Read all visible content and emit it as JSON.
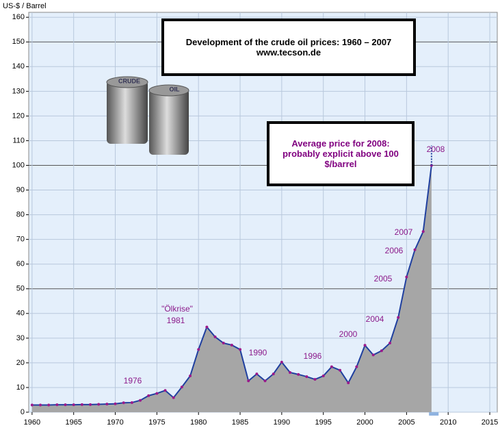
{
  "chart_data": {
    "type": "line",
    "title": "Development of the crude oil prices: 1960 – 2007",
    "subtitle": "www.tecson.de",
    "y_label": "US-$ / Barrel",
    "note": "Average price for 2008: probably explicit above 100 $/barrel",
    "drum_labels": [
      "CRUDE",
      "OIL"
    ],
    "annotations": [
      "1976",
      "\"Ölkrise\"",
      "1981",
      "1990",
      "1996",
      "2000",
      "2004",
      "2005",
      "2006",
      "2007",
      "2008"
    ],
    "series": [
      {
        "color": "#1f3f9f",
        "marker_color": "#9b1a8b",
        "area_color": "#a6a6a6",
        "x": [
          1960,
          1961,
          1962,
          1963,
          1964,
          1965,
          1966,
          1967,
          1968,
          1969,
          1970,
          1971,
          1972,
          1973,
          1974,
          1975,
          1976,
          1977,
          1978,
          1979,
          1980,
          1981,
          1982,
          1983,
          1984,
          1985,
          1986,
          1987,
          1988,
          1989,
          1990,
          1991,
          1992,
          1993,
          1994,
          1995,
          1996,
          1997,
          1998,
          1999,
          2000,
          2001,
          2002,
          2003,
          2004,
          2005,
          2006,
          2007,
          2008
        ],
        "values": [
          2.9,
          2.9,
          2.9,
          3.0,
          3.0,
          3.0,
          3.1,
          3.1,
          3.2,
          3.3,
          3.4,
          3.8,
          3.9,
          4.8,
          6.7,
          7.6,
          8.8,
          5.9,
          10.2,
          14.7,
          25.4,
          34.5,
          30.5,
          28.0,
          27.2,
          25.4,
          12.7,
          15.5,
          12.7,
          15.5,
          20.3,
          16.1,
          15.3,
          14.4,
          13.3,
          14.7,
          18.4,
          17.0,
          11.9,
          18.4,
          27.1,
          23.2,
          24.9,
          28.0,
          38.4,
          54.8,
          65.8,
          73.2,
          100
        ]
      },
      {
        "color": "#1f3f9f",
        "dashed": true,
        "x": [
          2008,
          2008
        ],
        "values": [
          100,
          108
        ]
      }
    ],
    "xlim": [
      1959.6,
      2015.9
    ],
    "xticks": [
      1960,
      1965,
      1970,
      1975,
      1980,
      1985,
      1990,
      1995,
      2000,
      2005,
      2010,
      2015
    ],
    "ylim": [
      0,
      162
    ],
    "yticks": [
      0,
      10,
      20,
      30,
      40,
      50,
      60,
      70,
      80,
      90,
      100,
      110,
      120,
      130,
      140,
      150,
      160
    ],
    "grid": true,
    "background": "#e4effb"
  }
}
